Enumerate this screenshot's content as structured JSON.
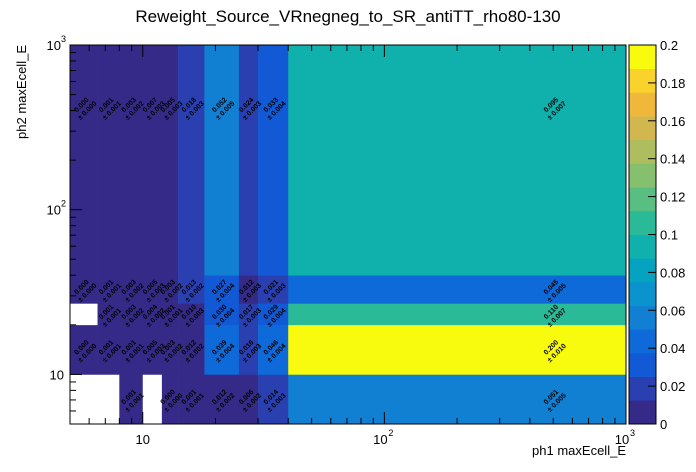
{
  "chart_data": {
    "type": "heatmap",
    "title": "Reweight_Source_VRnegneg_to_SR_antiTT_rho80-130",
    "xlabel": "ph1 maxEcell_E",
    "ylabel": "ph2 maxEcell_E",
    "xscale": "log",
    "yscale": "log",
    "xlim": [
      5,
      1000
    ],
    "ylim": [
      5,
      1000
    ],
    "zlim": [
      0,
      0.2
    ],
    "x_ticks": [
      {
        "base": "10",
        "exp": ""
      },
      {
        "base": "10",
        "exp": "2"
      },
      {
        "base": "10",
        "exp": "3"
      }
    ],
    "y_ticks": [
      {
        "base": "10",
        "exp": ""
      },
      {
        "base": "10",
        "exp": "2"
      },
      {
        "base": "10",
        "exp": "3"
      }
    ],
    "x_ticks_values": [
      10,
      100,
      1000
    ],
    "y_ticks_values": [
      10,
      100,
      1000
    ],
    "colorbar_ticks": [
      "0",
      "0.02",
      "0.04",
      "0.06",
      "0.08",
      "0.1",
      "0.12",
      "0.14",
      "0.16",
      "0.18",
      "0.2"
    ],
    "colorbar_tick_values": [
      0,
      0.02,
      0.04,
      0.06,
      0.08,
      0.1,
      0.12,
      0.14,
      0.16,
      0.18,
      0.2
    ],
    "x_bin_edges": [
      5,
      6.5,
      8,
      10,
      12,
      14,
      18,
      25,
      30,
      40,
      1000
    ],
    "y_bin_edges": [
      5,
      10,
      20,
      27,
      40,
      1000
    ],
    "cells": [
      {
        "xi": 0,
        "yi": 0,
        "value": null
      },
      {
        "xi": 1,
        "yi": 0,
        "value": null
      },
      {
        "xi": 2,
        "yi": 0,
        "value": 0.001,
        "label": "0.001",
        "err": "± 0.001"
      },
      {
        "xi": 3,
        "yi": 0,
        "value": null
      },
      {
        "xi": 4,
        "yi": 0,
        "value": 0.0,
        "label": "0.000",
        "err": "± 0.000"
      },
      {
        "xi": 5,
        "yi": 0,
        "value": 0.001,
        "label": "0.001",
        "err": "± 0.001"
      },
      {
        "xi": 6,
        "yi": 0,
        "value": 0.012,
        "label": "0.012",
        "err": "± 0.002"
      },
      {
        "xi": 7,
        "yi": 0,
        "value": 0.006,
        "label": "0.006",
        "err": "± 0.002"
      },
      {
        "xi": 8,
        "yi": 0,
        "value": 0.014,
        "label": "0.014",
        "err": "± 0.003"
      },
      {
        "xi": 9,
        "yi": 0,
        "value": 0.051,
        "label": "0.051",
        "err": "± 0.005"
      },
      {
        "xi": 0,
        "yi": 1,
        "value": 0.0,
        "label": "0.000",
        "err": "± 0.000"
      },
      {
        "xi": 1,
        "yi": 1,
        "value": 0.001,
        "label": "0.001",
        "err": "± 0.001"
      },
      {
        "xi": 2,
        "yi": 1,
        "value": 0.001,
        "label": "0.001",
        "err": "± 0.001"
      },
      {
        "xi": 3,
        "yi": 1,
        "value": 0.005,
        "label": "0.005",
        "err": "± 0.003"
      },
      {
        "xi": 4,
        "yi": 1,
        "value": 0.003,
        "label": "0.003",
        "err": "± 0.002"
      },
      {
        "xi": 5,
        "yi": 1,
        "value": 0.012,
        "label": "0.012",
        "err": "± 0.002"
      },
      {
        "xi": 6,
        "yi": 1,
        "value": 0.039,
        "label": "0.039",
        "err": "± 0.004"
      },
      {
        "xi": 7,
        "yi": 1,
        "value": 0.016,
        "label": "0.016",
        "err": "± 0.003"
      },
      {
        "xi": 8,
        "yi": 1,
        "value": 0.046,
        "label": "0.046",
        "err": "± 0.004"
      },
      {
        "xi": 9,
        "yi": 1,
        "value": 0.2,
        "label": "0.200",
        "err": "± 0.010"
      },
      {
        "xi": 0,
        "yi": 2,
        "value": null
      },
      {
        "xi": 1,
        "yi": 2,
        "value": 0.001,
        "label": "0.001",
        "err": "± 0.001"
      },
      {
        "xi": 2,
        "yi": 2,
        "value": 0.003,
        "label": "0.003",
        "err": "± 0.002"
      },
      {
        "xi": 3,
        "yi": 2,
        "value": 0.004,
        "label": "0.004",
        "err": "± 0.002"
      },
      {
        "xi": 4,
        "yi": 2,
        "value": 0.001,
        "label": "0.001",
        "err": "± 0.001"
      },
      {
        "xi": 5,
        "yi": 2,
        "value": 0.01,
        "label": "0.010",
        "err": "± 0.003"
      },
      {
        "xi": 6,
        "yi": 2,
        "value": 0.03,
        "label": "0.030",
        "err": "± 0.004"
      },
      {
        "xi": 7,
        "yi": 2,
        "value": 0.017,
        "label": "0.017",
        "err": "± 0.003"
      },
      {
        "xi": 8,
        "yi": 2,
        "value": 0.029,
        "label": "0.029",
        "err": "± 0.004"
      },
      {
        "xi": 9,
        "yi": 2,
        "value": 0.11,
        "label": "0.110",
        "err": "± 0.007"
      },
      {
        "xi": 0,
        "yi": 3,
        "value": 0.0,
        "label": "0.000",
        "err": "± 0.000"
      },
      {
        "xi": 1,
        "yi": 3,
        "value": 0.001,
        "label": "0.001",
        "err": "± 0.001"
      },
      {
        "xi": 2,
        "yi": 3,
        "value": 0.003,
        "label": "0.003",
        "err": "± 0.002"
      },
      {
        "xi": 3,
        "yi": 3,
        "value": 0.005,
        "label": "0.005",
        "err": "± 0.003"
      },
      {
        "xi": 4,
        "yi": 3,
        "value": 0.003,
        "label": "0.003",
        "err": "± 0.002"
      },
      {
        "xi": 5,
        "yi": 3,
        "value": 0.013,
        "label": "0.013",
        "err": "± 0.002"
      },
      {
        "xi": 6,
        "yi": 3,
        "value": 0.027,
        "label": "0.027",
        "err": "± 0.004"
      },
      {
        "xi": 7,
        "yi": 3,
        "value": 0.012,
        "label": "0.012",
        "err": "± 0.003"
      },
      {
        "xi": 8,
        "yi": 3,
        "value": 0.021,
        "label": "0.021",
        "err": "± 0.003"
      },
      {
        "xi": 9,
        "yi": 3,
        "value": 0.045,
        "label": "0.045",
        "err": "± 0.005"
      },
      {
        "xi": 0,
        "yi": 4,
        "value": 0.0,
        "label": "0.000",
        "err": "± 0.000"
      },
      {
        "xi": 1,
        "yi": 4,
        "value": 0.001,
        "label": "0.001",
        "err": "± 0.001"
      },
      {
        "xi": 2,
        "yi": 4,
        "value": 0.003,
        "label": "0.003",
        "err": "± 0.002"
      },
      {
        "xi": 3,
        "yi": 4,
        "value": 0.007,
        "label": "0.007",
        "err": "± 0.003"
      },
      {
        "xi": 4,
        "yi": 4,
        "value": 0.005,
        "label": "0.005",
        "err": "± 0.003"
      },
      {
        "xi": 5,
        "yi": 4,
        "value": 0.018,
        "label": "0.018",
        "err": "± 0.003"
      },
      {
        "xi": 6,
        "yi": 4,
        "value": 0.052,
        "label": "0.052",
        "err": "± 0.005"
      },
      {
        "xi": 7,
        "yi": 4,
        "value": 0.024,
        "label": "0.024",
        "err": "± 0.003"
      },
      {
        "xi": 8,
        "yi": 4,
        "value": 0.033,
        "label": "0.033",
        "err": "± 0.004"
      },
      {
        "xi": 9,
        "yi": 4,
        "value": 0.095,
        "label": "0.095",
        "err": "± 0.007"
      }
    ]
  },
  "colors": {
    "palette": [
      "#352a87",
      "#2a40b0",
      "#1259d5",
      "#0f6ad9",
      "#1180d3",
      "#0a93cc",
      "#06a3c0",
      "#10b0ad",
      "#2bba98",
      "#58be82",
      "#86bf6d",
      "#aebd5e",
      "#d2b74f",
      "#efb83a",
      "#f9d32b",
      "#f9fb0e"
    ],
    "empty": "#ffffff",
    "frame": "#000000"
  }
}
